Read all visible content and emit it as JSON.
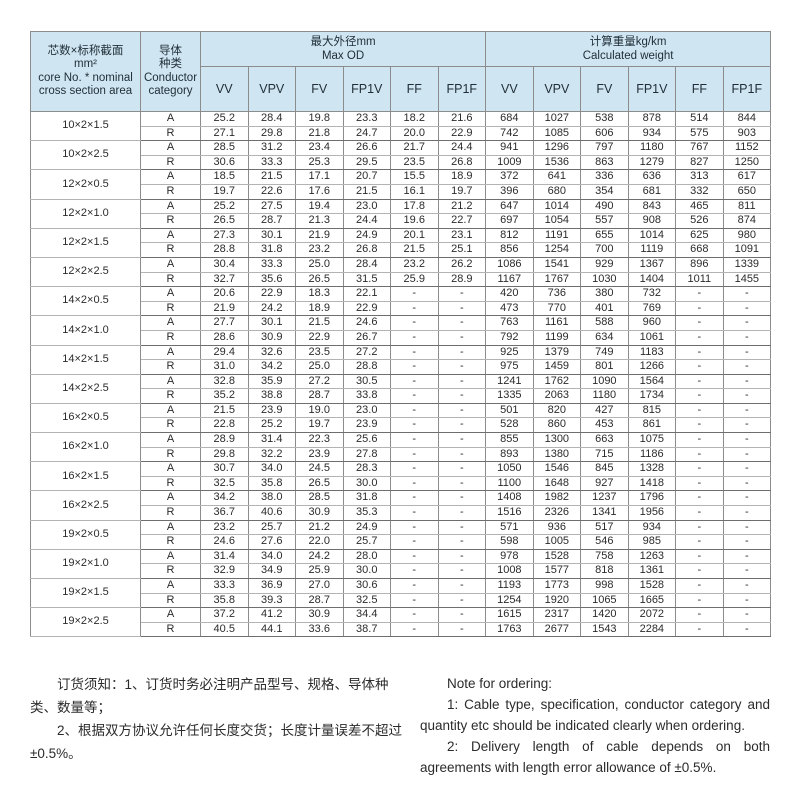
{
  "table": {
    "spec_header": [
      "芯数×标称截面",
      "mm²",
      "core No. * nominal",
      "cross section area"
    ],
    "conductor_header": [
      "导体",
      "种类",
      "Conductor",
      "category"
    ],
    "od_group": [
      "最大外径mm",
      "Max OD"
    ],
    "weight_group": [
      "计算重量kg/km",
      "Calculated weight"
    ],
    "columns": [
      "VV",
      "VPV",
      "FV",
      "FP1V",
      "FF",
      "FP1F"
    ],
    "groups": [
      {
        "spec": "10×2×1.5",
        "rows": [
          {
            "cat": "A",
            "values": [
              "25.2",
              "28.4",
              "19.8",
              "23.3",
              "18.2",
              "21.6",
              "684",
              "1027",
              "538",
              "878",
              "514",
              "844"
            ]
          },
          {
            "cat": "R",
            "values": [
              "27.1",
              "29.8",
              "21.8",
              "24.7",
              "20.0",
              "22.9",
              "742",
              "1085",
              "606",
              "934",
              "575",
              "903"
            ]
          }
        ]
      },
      {
        "spec": "10×2×2.5",
        "rows": [
          {
            "cat": "A",
            "values": [
              "28.5",
              "31.2",
              "23.4",
              "26.6",
              "21.7",
              "24.4",
              "941",
              "1296",
              "797",
              "1180",
              "767",
              "1152"
            ]
          },
          {
            "cat": "R",
            "values": [
              "30.6",
              "33.3",
              "25.3",
              "29.5",
              "23.5",
              "26.8",
              "1009",
              "1536",
              "863",
              "1279",
              "827",
              "1250"
            ]
          }
        ]
      },
      {
        "spec": "12×2×0.5",
        "rows": [
          {
            "cat": "A",
            "values": [
              "18.5",
              "21.5",
              "17.1",
              "20.7",
              "15.5",
              "18.9",
              "372",
              "641",
              "336",
              "636",
              "313",
              "617"
            ]
          },
          {
            "cat": "R",
            "values": [
              "19.7",
              "22.6",
              "17.6",
              "21.5",
              "16.1",
              "19.7",
              "396",
              "680",
              "354",
              "681",
              "332",
              "650"
            ]
          }
        ]
      },
      {
        "spec": "12×2×1.0",
        "rows": [
          {
            "cat": "A",
            "values": [
              "25.2",
              "27.5",
              "19.4",
              "23.0",
              "17.8",
              "21.2",
              "647",
              "1014",
              "490",
              "843",
              "465",
              "811"
            ]
          },
          {
            "cat": "R",
            "values": [
              "26.5",
              "28.7",
              "21.3",
              "24.4",
              "19.6",
              "22.7",
              "697",
              "1054",
              "557",
              "908",
              "526",
              "874"
            ]
          }
        ]
      },
      {
        "spec": "12×2×1.5",
        "rows": [
          {
            "cat": "A",
            "values": [
              "27.3",
              "30.1",
              "21.9",
              "24.9",
              "20.1",
              "23.1",
              "812",
              "1191",
              "655",
              "1014",
              "625",
              "980"
            ]
          },
          {
            "cat": "R",
            "values": [
              "28.8",
              "31.8",
              "23.2",
              "26.8",
              "21.5",
              "25.1",
              "856",
              "1254",
              "700",
              "1119",
              "668",
              "1091"
            ]
          }
        ]
      },
      {
        "spec": "12×2×2.5",
        "rows": [
          {
            "cat": "A",
            "values": [
              "30.4",
              "33.3",
              "25.0",
              "28.4",
              "23.2",
              "26.2",
              "1086",
              "1541",
              "929",
              "1367",
              "896",
              "1339"
            ]
          },
          {
            "cat": "R",
            "values": [
              "32.7",
              "35.6",
              "26.5",
              "31.5",
              "25.9",
              "28.9",
              "1167",
              "1767",
              "1030",
              "1404",
              "1011",
              "1455"
            ]
          }
        ]
      },
      {
        "spec": "14×2×0.5",
        "rows": [
          {
            "cat": "A",
            "values": [
              "20.6",
              "22.9",
              "18.3",
              "22.1",
              "-",
              "-",
              "420",
              "736",
              "380",
              "732",
              "-",
              "-"
            ]
          },
          {
            "cat": "R",
            "values": [
              "21.9",
              "24.2",
              "18.9",
              "22.9",
              "-",
              "-",
              "473",
              "770",
              "401",
              "769",
              "-",
              "-"
            ]
          }
        ]
      },
      {
        "spec": "14×2×1.0",
        "rows": [
          {
            "cat": "A",
            "values": [
              "27.7",
              "30.1",
              "21.5",
              "24.6",
              "-",
              "-",
              "763",
              "1161",
              "588",
              "960",
              "-",
              "-"
            ]
          },
          {
            "cat": "R",
            "values": [
              "28.6",
              "30.9",
              "22.9",
              "26.7",
              "-",
              "-",
              "792",
              "1199",
              "634",
              "1061",
              "-",
              "-"
            ]
          }
        ]
      },
      {
        "spec": "14×2×1.5",
        "rows": [
          {
            "cat": "A",
            "values": [
              "29.4",
              "32.6",
              "23.5",
              "27.2",
              "-",
              "-",
              "925",
              "1379",
              "749",
              "1183",
              "-",
              "-"
            ]
          },
          {
            "cat": "R",
            "values": [
              "31.0",
              "34.2",
              "25.0",
              "28.8",
              "-",
              "-",
              "975",
              "1459",
              "801",
              "1266",
              "-",
              "-"
            ]
          }
        ]
      },
      {
        "spec": "14×2×2.5",
        "rows": [
          {
            "cat": "A",
            "values": [
              "32.8",
              "35.9",
              "27.2",
              "30.5",
              "-",
              "-",
              "1241",
              "1762",
              "1090",
              "1564",
              "-",
              "-"
            ]
          },
          {
            "cat": "R",
            "values": [
              "35.2",
              "38.8",
              "28.7",
              "33.8",
              "-",
              "-",
              "1335",
              "2063",
              "1180",
              "1734",
              "-",
              "-"
            ]
          }
        ]
      },
      {
        "spec": "16×2×0.5",
        "rows": [
          {
            "cat": "A",
            "values": [
              "21.5",
              "23.9",
              "19.0",
              "23.0",
              "-",
              "-",
              "501",
              "820",
              "427",
              "815",
              "-",
              "-"
            ]
          },
          {
            "cat": "R",
            "values": [
              "22.8",
              "25.2",
              "19.7",
              "23.9",
              "-",
              "-",
              "528",
              "860",
              "453",
              "861",
              "-",
              "-"
            ]
          }
        ]
      },
      {
        "spec": "16×2×1.0",
        "rows": [
          {
            "cat": "A",
            "values": [
              "28.9",
              "31.4",
              "22.3",
              "25.6",
              "-",
              "-",
              "855",
              "1300",
              "663",
              "1075",
              "-",
              "-"
            ]
          },
          {
            "cat": "R",
            "values": [
              "29.8",
              "32.2",
              "23.9",
              "27.8",
              "-",
              "-",
              "893",
              "1380",
              "715",
              "1186",
              "-",
              "-"
            ]
          }
        ]
      },
      {
        "spec": "16×2×1.5",
        "rows": [
          {
            "cat": "A",
            "values": [
              "30.7",
              "34.0",
              "24.5",
              "28.3",
              "-",
              "-",
              "1050",
              "1546",
              "845",
              "1328",
              "-",
              "-"
            ]
          },
          {
            "cat": "R",
            "values": [
              "32.5",
              "35.8",
              "26.5",
              "30.0",
              "-",
              "-",
              "1100",
              "1648",
              "927",
              "1418",
              "-",
              "-"
            ]
          }
        ]
      },
      {
        "spec": "16×2×2.5",
        "rows": [
          {
            "cat": "A",
            "values": [
              "34.2",
              "38.0",
              "28.5",
              "31.8",
              "-",
              "-",
              "1408",
              "1982",
              "1237",
              "1796",
              "-",
              "-"
            ]
          },
          {
            "cat": "R",
            "values": [
              "36.7",
              "40.6",
              "30.9",
              "35.3",
              "-",
              "-",
              "1516",
              "2326",
              "1341",
              "1956",
              "-",
              "-"
            ]
          }
        ]
      },
      {
        "spec": "19×2×0.5",
        "rows": [
          {
            "cat": "A",
            "values": [
              "23.2",
              "25.7",
              "21.2",
              "24.9",
              "-",
              "-",
              "571",
              "936",
              "517",
              "934",
              "-",
              "-"
            ]
          },
          {
            "cat": "R",
            "values": [
              "24.6",
              "27.6",
              "22.0",
              "25.7",
              "-",
              "-",
              "598",
              "1005",
              "546",
              "985",
              "-",
              "-"
            ]
          }
        ]
      },
      {
        "spec": "19×2×1.0",
        "rows": [
          {
            "cat": "A",
            "values": [
              "31.4",
              "34.0",
              "24.2",
              "28.0",
              "-",
              "-",
              "978",
              "1528",
              "758",
              "1263",
              "-",
              "-"
            ]
          },
          {
            "cat": "R",
            "values": [
              "32.9",
              "34.9",
              "25.9",
              "30.0",
              "-",
              "-",
              "1008",
              "1577",
              "818",
              "1361",
              "-",
              "-"
            ]
          }
        ]
      },
      {
        "spec": "19×2×1.5",
        "rows": [
          {
            "cat": "A",
            "values": [
              "33.3",
              "36.9",
              "27.0",
              "30.6",
              "-",
              "-",
              "1193",
              "1773",
              "998",
              "1528",
              "-",
              "-"
            ]
          },
          {
            "cat": "R",
            "values": [
              "35.8",
              "39.3",
              "28.7",
              "32.5",
              "-",
              "-",
              "1254",
              "1920",
              "1065",
              "1665",
              "-",
              "-"
            ]
          }
        ]
      },
      {
        "spec": "19×2×2.5",
        "rows": [
          {
            "cat": "A",
            "values": [
              "37.2",
              "41.2",
              "30.9",
              "34.4",
              "-",
              "-",
              "1615",
              "2317",
              "1420",
              "2072",
              "-",
              "-"
            ]
          },
          {
            "cat": "R",
            "values": [
              "40.5",
              "44.1",
              "33.6",
              "38.7",
              "-",
              "-",
              "1763",
              "2677",
              "1543",
              "2284",
              "-",
              "-"
            ]
          }
        ]
      }
    ]
  },
  "notes": {
    "zh": [
      "订货须知：1、订货时务必注明产品型号、规格、导体种类、数量等；",
      "2、根据双方协议允许任何长度交货；长度计量误差不超过±0.5%。"
    ],
    "en": [
      "Note for ordering:",
      "1: Cable type, specification, conductor category and quantity etc should be indicated clearly when ordering.",
      "2: Delivery length of cable depends on both agreements with length error allowance of ±0.5%."
    ]
  },
  "colors": {
    "header_bg": "#cfe6f2",
    "border": "#6e6e6e"
  }
}
